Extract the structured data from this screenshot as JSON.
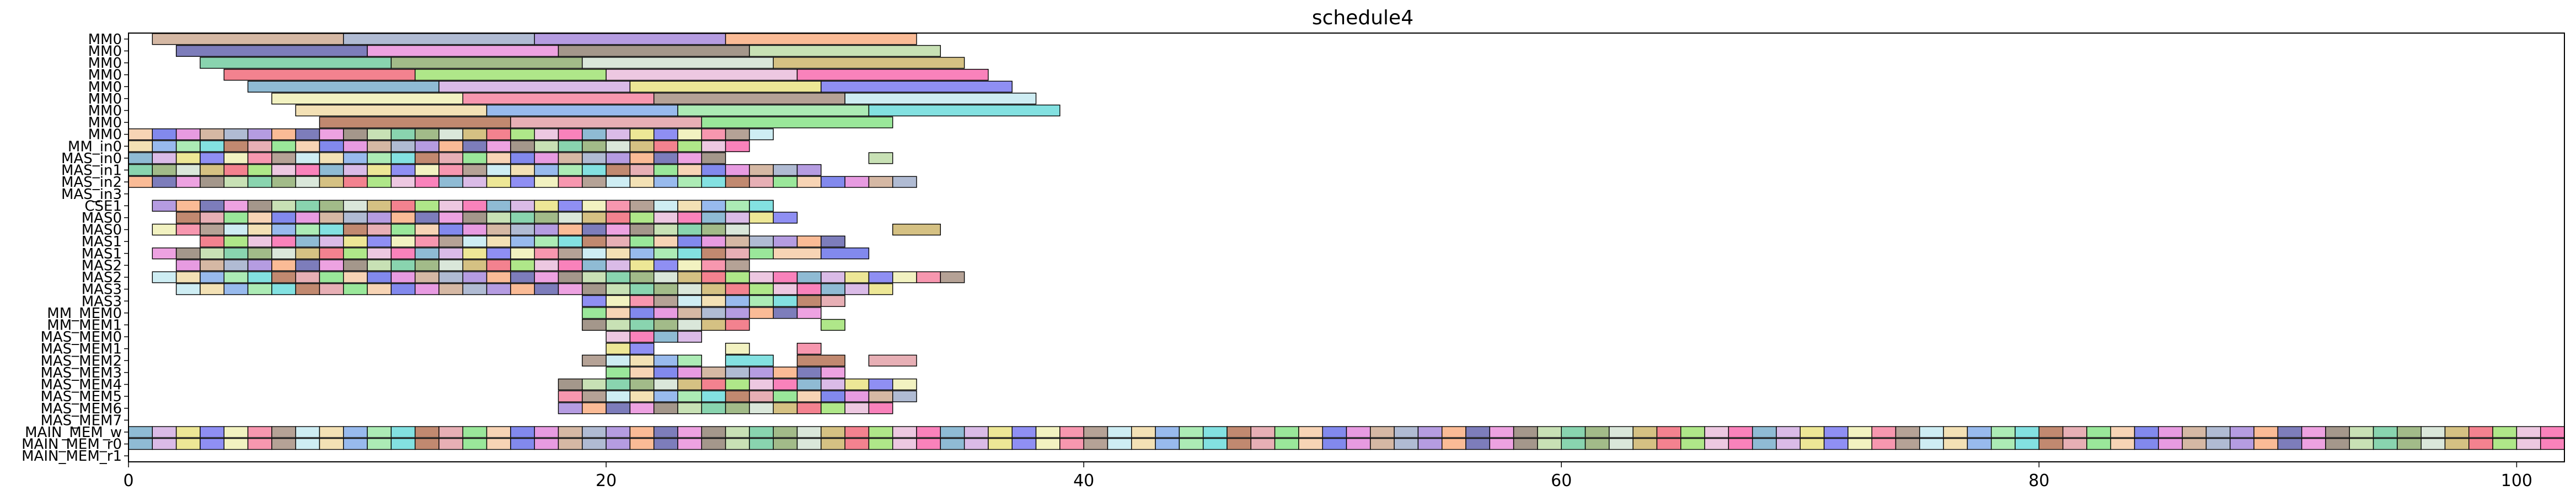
{
  "chart_data": {
    "type": "gantt",
    "title": "schedule4",
    "xlabel": "",
    "ylabel": "",
    "xlim": [
      0,
      102
    ],
    "x_ticks": [
      0,
      20,
      40,
      60,
      80,
      100
    ],
    "rows": [
      "MM0",
      "MM0",
      "MM0",
      "MM0",
      "MM0",
      "MM0",
      "MM0",
      "MM0",
      "MM0",
      "MM_in0",
      "MAS_in0",
      "MAS_in1",
      "MAS_in2",
      "MAS_in3",
      "CSE1",
      "MAS0",
      "MAS0",
      "MAS1",
      "MAS1",
      "MAS2",
      "MAS2",
      "MAS3",
      "MAS3",
      "MM_MEM0",
      "MM_MEM1",
      "MAS_MEM0",
      "MAS_MEM1",
      "MAS_MEM2",
      "MAS_MEM3",
      "MAS_MEM4",
      "MAS_MEM5",
      "MAS_MEM6",
      "MAS_MEM7",
      "MAIN_MEM_w",
      "MAIN_MEM_r0",
      "MAIN_MEM_r1"
    ],
    "palette": [
      "#c9a48b",
      "#e888d8",
      "#cfe0cf",
      "#f75fa8",
      "#eeeeb0",
      "#7ba7e8",
      "#7ee07e",
      "#9aa8c7",
      "#8a7a6a",
      "#c9b060",
      "#6fa8c8",
      "#f57a98",
      "#95e5a0",
      "#f5c8a0",
      "#a080d8",
      "#b8d8a0",
      "#ef5f6f",
      "#d0a8e0",
      "#a08878",
      "#60d8d8",
      "#5f68e8",
      "#f8a878",
      "#68c898",
      "#98e068",
      "#e8e078",
      "#c0e8f0",
      "#b06848",
      "#e07fd8",
      "#5858a8",
      "#88a868",
      "#e8b8d8",
      "#7070f0",
      "#f0d8a0",
      "#e098a0"
    ],
    "segments": [
      [
        0,
        [
          [
            1,
            9
          ],
          [
            9,
            17
          ],
          [
            17,
            25
          ],
          [
            25,
            33
          ]
        ]
      ],
      [
        1,
        [
          [
            2,
            10
          ],
          [
            10,
            18
          ],
          [
            18,
            26
          ],
          [
            26,
            34
          ]
        ]
      ],
      [
        2,
        [
          [
            3,
            11
          ],
          [
            11,
            19
          ],
          [
            19,
            27
          ],
          [
            27,
            35
          ]
        ]
      ],
      [
        3,
        [
          [
            4,
            12
          ],
          [
            12,
            20
          ],
          [
            20,
            28
          ],
          [
            28,
            36
          ]
        ]
      ],
      [
        4,
        [
          [
            5,
            13
          ],
          [
            13,
            21
          ],
          [
            21,
            29
          ],
          [
            29,
            37
          ]
        ]
      ],
      [
        5,
        [
          [
            6,
            14
          ],
          [
            14,
            22
          ],
          [
            22,
            30
          ],
          [
            30,
            38
          ]
        ]
      ],
      [
        6,
        [
          [
            7,
            15
          ],
          [
            15,
            23
          ],
          [
            23,
            31
          ],
          [
            31,
            39
          ]
        ]
      ],
      [
        7,
        [
          [
            8,
            16
          ],
          [
            16,
            24
          ],
          [
            24,
            32
          ]
        ]
      ],
      [
        8,
        "run",
        0,
        27
      ],
      [
        9,
        "run",
        0,
        26
      ],
      [
        10,
        "run",
        0,
        25,
        [
          [
            31,
            32
          ]
        ]
      ],
      [
        11,
        "run",
        0,
        29
      ],
      [
        12,
        "run",
        0,
        33
      ],
      [
        13,
        []
      ],
      [
        14,
        "run",
        1,
        27
      ],
      [
        15,
        "run",
        2,
        28
      ],
      [
        16,
        "run",
        1,
        26,
        [
          [
            32,
            34
          ]
        ]
      ],
      [
        17,
        "run",
        3,
        30
      ],
      [
        18,
        "run",
        1,
        27,
        [
          [
            27,
            29
          ],
          [
            29,
            31
          ]
        ]
      ],
      [
        19,
        "run",
        2,
        26
      ],
      [
        20,
        "run",
        1,
        35
      ],
      [
        21,
        "run",
        2,
        32
      ],
      [
        22,
        "run",
        19,
        30
      ],
      [
        23,
        "run",
        19,
        29
      ],
      [
        24,
        "run",
        19,
        26,
        [
          [
            29,
            30
          ]
        ]
      ],
      [
        25,
        "run",
        20,
        24
      ],
      [
        26,
        "run",
        20,
        22,
        [
          [
            25,
            26
          ],
          [
            28,
            29
          ]
        ]
      ],
      [
        27,
        "run",
        19,
        24,
        [
          [
            25,
            27
          ],
          [
            28,
            30
          ],
          [
            31,
            33
          ]
        ]
      ],
      [
        28,
        "run",
        20,
        30
      ],
      [
        29,
        "run",
        18,
        33
      ],
      [
        30,
        "run",
        18,
        33
      ],
      [
        31,
        "run",
        18,
        32
      ],
      [
        32,
        []
      ],
      [
        33,
        "run",
        0,
        102
      ],
      [
        34,
        "run",
        0,
        102
      ]
    ]
  }
}
